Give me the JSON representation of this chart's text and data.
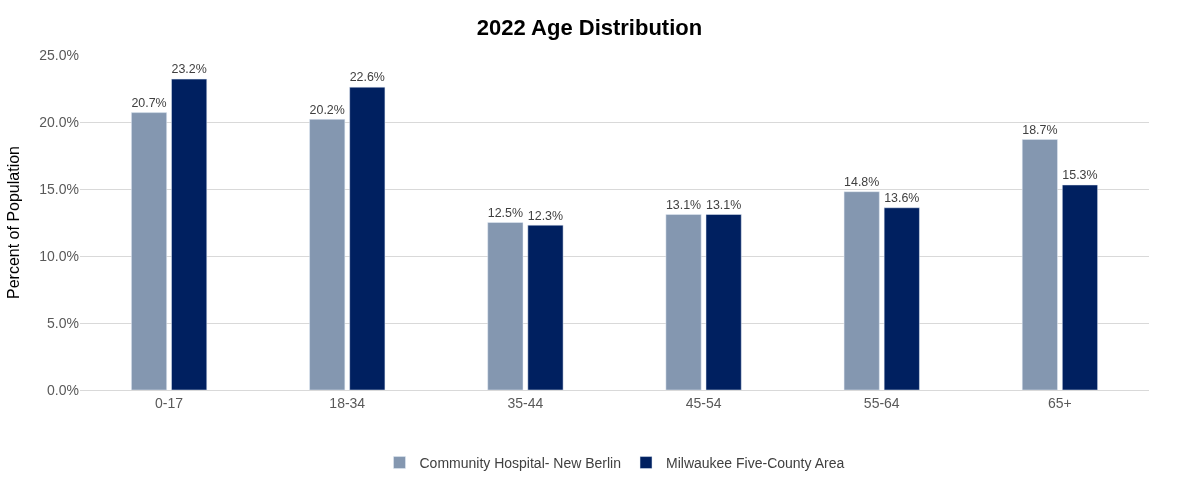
{
  "chart_data": {
    "type": "bar",
    "title": "2022 Age Distribution",
    "ylabel": "Percent of Population",
    "categories": [
      "0-17",
      "18-34",
      "35-44",
      "45-54",
      "55-64",
      "65+"
    ],
    "series": [
      {
        "name": "Community Hospital- New Berlin",
        "color": "#8497b0",
        "values": [
          20.7,
          20.2,
          12.5,
          13.1,
          14.8,
          18.7
        ],
        "value_labels": [
          "20.7%",
          "20.2%",
          "12.5%",
          "13.1%",
          "14.8%",
          "18.7%"
        ]
      },
      {
        "name": "Milwaukee Five-County Area",
        "color": "#002060",
        "values": [
          23.2,
          22.6,
          12.3,
          13.1,
          13.6,
          15.3
        ],
        "value_labels": [
          "23.2%",
          "22.6%",
          "12.3%",
          "13.1%",
          "13.6%",
          "15.3%"
        ]
      }
    ],
    "ylim": [
      0,
      25
    ],
    "yticks": [
      {
        "value": 0,
        "label": "0.0%"
      },
      {
        "value": 5,
        "label": "5.0%"
      },
      {
        "value": 10,
        "label": "10.0%"
      },
      {
        "value": 15,
        "label": "15.0%"
      },
      {
        "value": 20,
        "label": "20.0%"
      },
      {
        "value": 25,
        "label": "25.0%"
      }
    ],
    "grid": "y",
    "legend": "bottom"
  }
}
